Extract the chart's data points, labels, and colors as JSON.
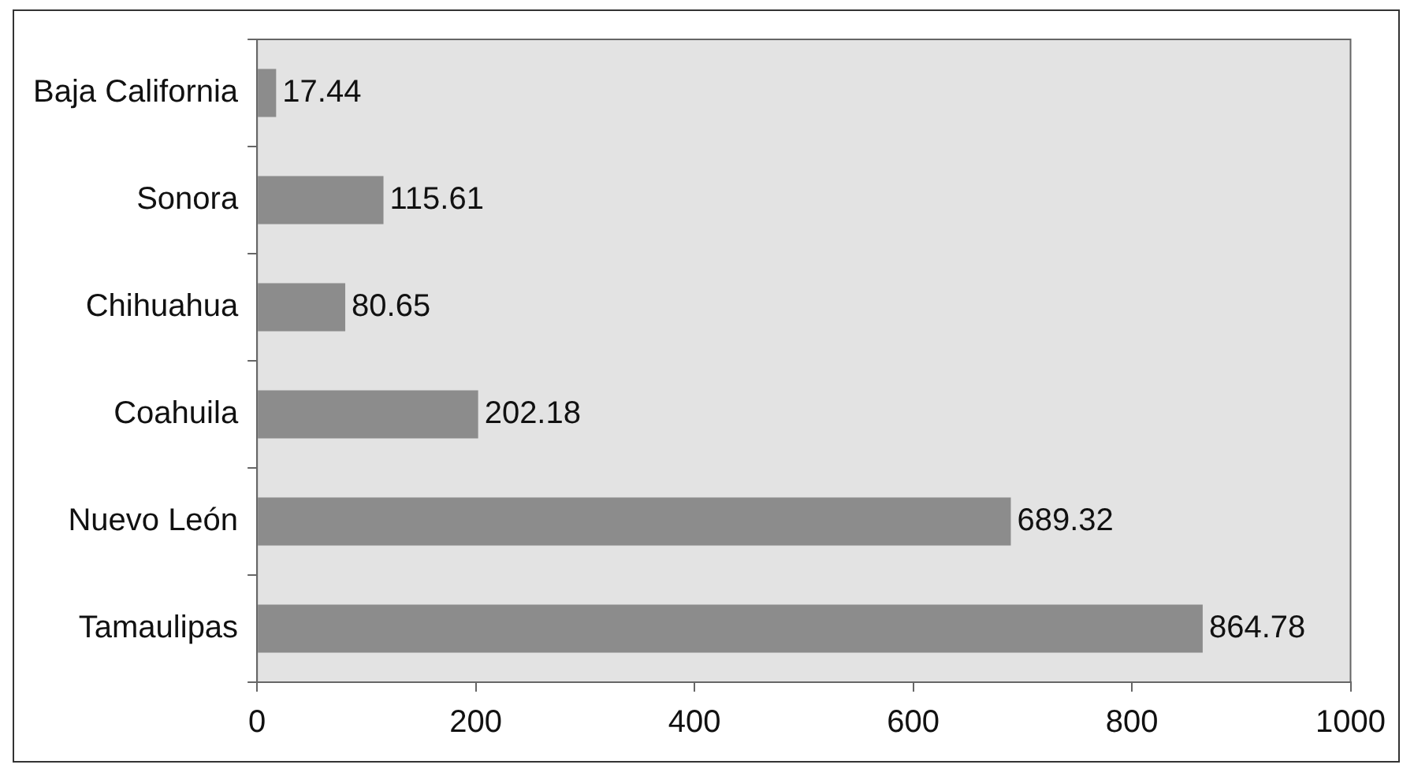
{
  "chart_data": {
    "type": "bar",
    "orientation": "horizontal",
    "categories": [
      "Baja California",
      "Sonora",
      "Chihuahua",
      "Coahuila",
      "Nuevo León",
      "Tamaulipas"
    ],
    "values": [
      17.44,
      115.61,
      80.65,
      202.18,
      689.32,
      864.78
    ],
    "color": "#8c8c8c",
    "xlim": [
      0,
      1000
    ],
    "xticks": [
      0,
      200,
      400,
      600,
      800,
      1000
    ],
    "grid": false,
    "legend": false,
    "data_labels": true
  }
}
